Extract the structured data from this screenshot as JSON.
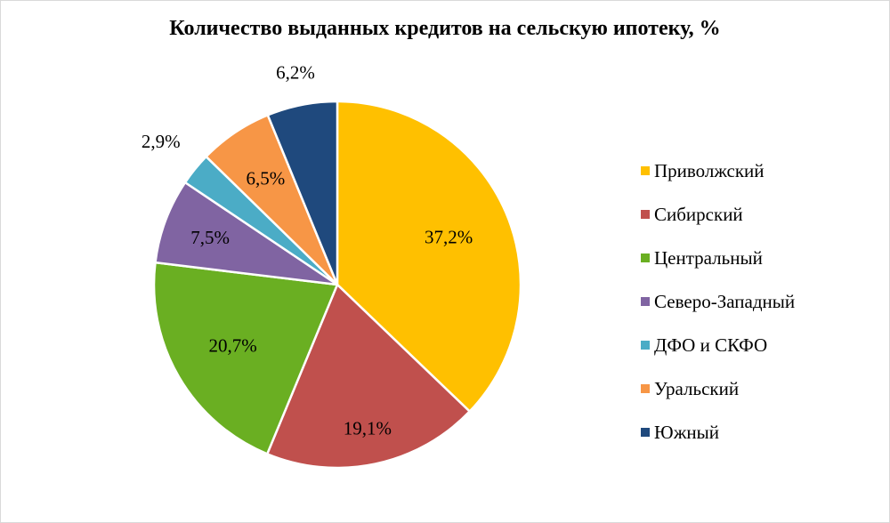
{
  "chart_data": {
    "type": "pie",
    "title": "Количество выданных кредитов на сельскую ипотеку, %",
    "legend_position": "right",
    "slices": [
      {
        "label": "Приволжский",
        "value": 37.2,
        "display": "37,2%",
        "color": "#FFC000"
      },
      {
        "label": "Сибирский",
        "value": 19.1,
        "display": "19,1%",
        "color": "#C0504D"
      },
      {
        "label": "Центральный",
        "value": 20.7,
        "display": "20,7%",
        "color": "#6AAF22"
      },
      {
        "label": "Северо-Западный",
        "value": 7.5,
        "display": "7,5%",
        "color": "#8064A2"
      },
      {
        "label": "ДФО и СКФО",
        "value": 2.9,
        "display": "2,9%",
        "color": "#4BACC6"
      },
      {
        "label": "Уральский",
        "value": 6.5,
        "display": "6,5%",
        "color": "#F79646"
      },
      {
        "label": "Южный",
        "value": 6.2,
        "display": "6,2%",
        "color": "#1F497D"
      }
    ]
  }
}
